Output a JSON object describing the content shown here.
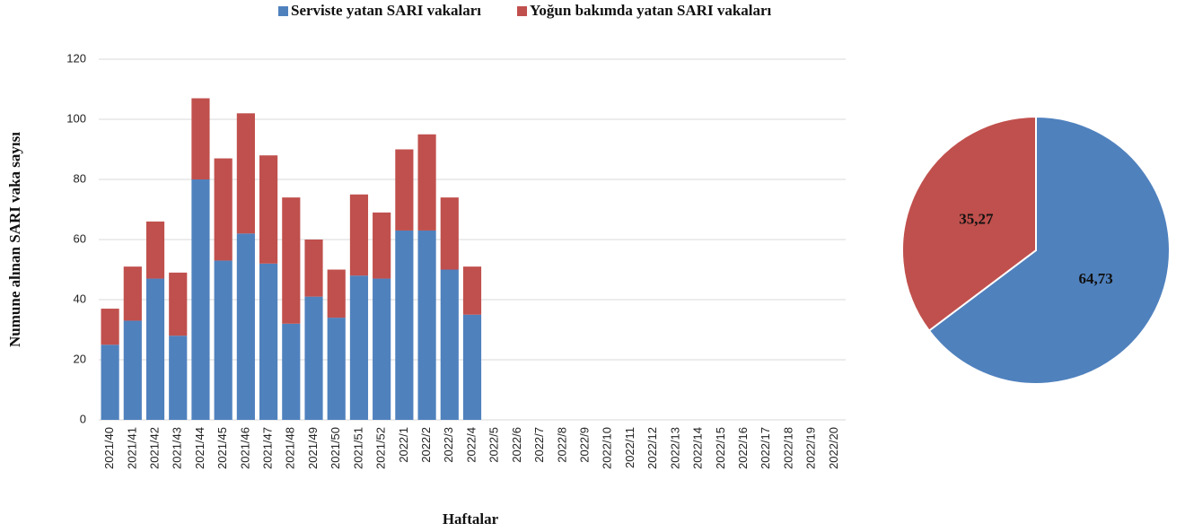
{
  "chart_data": [
    {
      "type": "bar",
      "stacked": true,
      "x_label": "Haftalar",
      "y_label": "Numune alınan SARI vaka sayısı",
      "categories": [
        "2021/40",
        "2021/41",
        "2021/42",
        "2021/43",
        "2021/44",
        "2021/45",
        "2021/46",
        "2021/47",
        "2021/48",
        "2021/49",
        "2021/50",
        "2021/51",
        "2021/52",
        "2022/1",
        "2022/2",
        "2022/3",
        "2022/4",
        "2022/5",
        "2022/6",
        "2022/7",
        "2022/8",
        "2022/9",
        "2022/10",
        "2022/11",
        "2022/12",
        "2022/13",
        "2022/14",
        "2022/15",
        "2022/16",
        "2022/17",
        "2022/18",
        "2022/19",
        "2022/20"
      ],
      "series": [
        {
          "name": "Serviste yatan SARI vakaları",
          "color": "#4f81bd",
          "values": [
            25,
            33,
            47,
            28,
            80,
            53,
            62,
            52,
            32,
            41,
            34,
            48,
            47,
            63,
            63,
            50,
            35,
            null,
            null,
            null,
            null,
            null,
            null,
            null,
            null,
            null,
            null,
            null,
            null,
            null,
            null,
            null,
            null
          ]
        },
        {
          "name": "Yoğun bakımda yatan SARI vakaları",
          "color": "#c0504d",
          "values": [
            12,
            18,
            19,
            21,
            27,
            34,
            40,
            36,
            42,
            19,
            16,
            27,
            22,
            27,
            32,
            24,
            16,
            null,
            null,
            null,
            null,
            null,
            null,
            null,
            null,
            null,
            null,
            null,
            null,
            null,
            null,
            null,
            null
          ]
        }
      ],
      "ylim": [
        0,
        120
      ],
      "yticks": [
        0,
        20,
        40,
        60,
        80,
        100,
        120
      ],
      "grid": true,
      "legend": "top"
    },
    {
      "type": "pie",
      "values": [
        64.73,
        35.27
      ],
      "value_labels": [
        "64,73",
        "35,27"
      ],
      "colors": [
        "#4f81bd",
        "#c0504d"
      ]
    }
  ]
}
